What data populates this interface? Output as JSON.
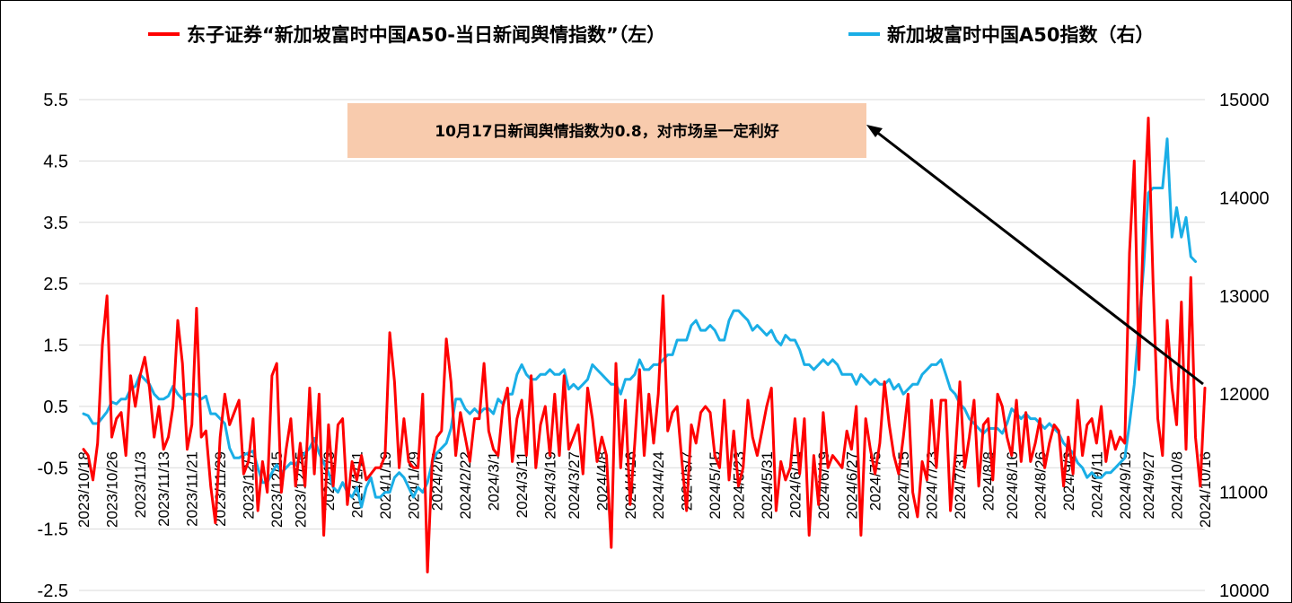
{
  "chart_data": {
    "type": "line",
    "legend_position": "top",
    "grid": true,
    "series": [
      {
        "name": "东子证券“新加坡富时中国A50-当日新闻舆情指数”（左）",
        "axis": "left",
        "color": "#ff0000",
        "values": [
          -0.2,
          -0.3,
          -0.7,
          -0.1,
          1.5,
          2.3,
          0.0,
          0.3,
          0.4,
          -0.3,
          1.0,
          0.5,
          1.0,
          1.3,
          0.8,
          0.0,
          0.5,
          -0.2,
          0.0,
          0.5,
          1.9,
          1.2,
          -0.2,
          0.2,
          2.1,
          0.0,
          0.1,
          -0.8,
          -1.4,
          0.0,
          0.7,
          0.2,
          0.4,
          0.6,
          -0.6,
          -0.4,
          0.3,
          -1.2,
          -0.4,
          -0.9,
          1.0,
          1.2,
          -0.9,
          -0.2,
          0.3,
          -0.8,
          -0.1,
          -0.8,
          0.8,
          -0.6,
          0.7,
          -1.6,
          0.2,
          -0.8,
          0.2,
          0.3,
          -1.1,
          -0.4,
          -0.7,
          -0.3,
          -0.7,
          -0.6,
          -0.5,
          -0.5,
          -0.3,
          1.7,
          0.9,
          -0.5,
          0.3,
          -0.4,
          -0.5,
          -0.5,
          0.7,
          -2.2,
          -0.4,
          0.0,
          0.1,
          1.6,
          0.9,
          -0.3,
          0.4,
          0.0,
          -0.4,
          0.3,
          0.3,
          1.2,
          0.1,
          -0.2,
          -0.3,
          0.5,
          0.8,
          -0.4,
          0.3,
          0.6,
          -0.3,
          1.0,
          -0.5,
          0.2,
          0.5,
          -0.3,
          0.7,
          -0.3,
          1.0,
          -0.2,
          0.0,
          0.2,
          -0.6,
          0.8,
          0.3,
          -0.4,
          0.0,
          -0.3,
          -1.8,
          1.2,
          -0.5,
          0.6,
          -1.1,
          -0.1,
          1.1,
          -0.3,
          0.7,
          -0.1,
          0.7,
          2.3,
          0.1,
          0.4,
          0.5,
          -0.4,
          -1.2,
          0.2,
          -0.1,
          0.4,
          0.5,
          0.4,
          -0.3,
          -0.5,
          0.6,
          -0.7,
          0.1,
          -0.8,
          -0.5,
          0.6,
          0.0,
          -0.3,
          0.1,
          0.5,
          0.8,
          -1.2,
          -0.4,
          -0.7,
          -0.5,
          0.3,
          -0.6,
          0.3,
          -1.6,
          -0.3,
          -1.1,
          0.4,
          -0.5,
          -0.3,
          -0.4,
          -0.5,
          0.1,
          -0.2,
          0.5,
          -1.6,
          0.3,
          -0.2,
          -0.6,
          -0.1,
          0.9,
          0.2,
          -0.3,
          -0.6,
          0.0,
          0.7,
          -0.9,
          -1.3,
          -0.4,
          -0.7,
          0.6,
          -0.5,
          0.6,
          0.6,
          -1.2,
          -0.3,
          0.9,
          -0.5,
          0.0,
          0.6,
          -0.8,
          0.2,
          0.3,
          -0.7,
          0.7,
          0.5,
          0.0,
          -0.3,
          0.6,
          -0.4,
          0.4,
          -0.4,
          -0.1,
          0.3,
          -0.5,
          -0.1,
          0.2,
          0.1,
          -0.8,
          0.0,
          -0.6,
          0.6,
          -0.3,
          0.2,
          0.3,
          -0.1,
          0.5,
          -0.4,
          0.1,
          -0.2,
          0.0,
          -0.1,
          3.0,
          4.5,
          1.1,
          3.5,
          5.2,
          2.5,
          0.3,
          -0.3,
          1.9,
          0.8,
          0.2,
          2.2,
          -0.2,
          2.6,
          0.0,
          -0.8,
          0.8
        ]
      },
      {
        "name": "新加坡富时中国A50指数（右）",
        "axis": "right",
        "color": "#1aaee6",
        "values": [
          11800,
          11780,
          11700,
          11700,
          11760,
          11820,
          11920,
          11900,
          11950,
          11950,
          12050,
          12080,
          12200,
          12150,
          12100,
          12000,
          11950,
          11950,
          11980,
          12080,
          12000,
          11950,
          12000,
          12000,
          12000,
          11950,
          11980,
          11800,
          11800,
          11750,
          11700,
          11450,
          11350,
          11350,
          11380,
          11400,
          11420,
          11250,
          11100,
          11100,
          11200,
          11280,
          11200,
          11250,
          11300,
          11280,
          11350,
          11400,
          11450,
          11550,
          11400,
          11300,
          11200,
          11050,
          11000,
          11100,
          11000,
          10950,
          11050,
          10850,
          11050,
          11150,
          10950,
          10950,
          11000,
          11000,
          11150,
          11200,
          11150,
          11050,
          10950,
          11050,
          11000,
          11100,
          11300,
          11400,
          11450,
          11500,
          11650,
          11950,
          11950,
          11850,
          11800,
          11850,
          11800,
          11850,
          11850,
          11800,
          11950,
          11900,
          12000,
          12000,
          12200,
          12300,
          12200,
          12150,
          12150,
          12200,
          12200,
          12250,
          12200,
          12200,
          12250,
          12050,
          12100,
          12050,
          12100,
          12150,
          12300,
          12250,
          12200,
          12150,
          12100,
          12100,
          12000,
          12150,
          12150,
          12200,
          12350,
          12250,
          12250,
          12300,
          12300,
          12350,
          12400,
          12400,
          12550,
          12550,
          12550,
          12700,
          12750,
          12650,
          12650,
          12700,
          12650,
          12550,
          12550,
          12750,
          12850,
          12850,
          12800,
          12750,
          12650,
          12700,
          12650,
          12600,
          12650,
          12550,
          12500,
          12600,
          12550,
          12550,
          12450,
          12300,
          12300,
          12250,
          12300,
          12350,
          12300,
          12350,
          12300,
          12200,
          12200,
          12200,
          12100,
          12200,
          12150,
          12100,
          12150,
          12100,
          12100,
          12150,
          12050,
          12100,
          12000,
          12050,
          12100,
          12100,
          12200,
          12250,
          12300,
          12300,
          12350,
          12200,
          12050,
          12000,
          11900,
          11850,
          11750,
          11700,
          11650,
          11600,
          11650,
          11650,
          11650,
          11600,
          11700,
          11850,
          11800,
          11750,
          11800,
          11750,
          11750,
          11700,
          11650,
          11700,
          11650,
          11600,
          11500,
          11450,
          11400,
          11300,
          11250,
          11150,
          11200,
          11150,
          11150,
          11200,
          11200,
          11250,
          11300,
          11350,
          11700,
          12100,
          12700,
          13300,
          14050,
          14100,
          14100,
          14100,
          14600,
          13600,
          13900,
          13600,
          13800,
          13400,
          13350
        ]
      }
    ],
    "x_tick_labels": [
      "2023/10/18",
      "2023/10/26",
      "2023/11/3",
      "2023/11/13",
      "2023/11/21",
      "2023/11/29",
      "2023/12/7",
      "2023/12/15",
      "2023/12/25",
      "2024/1/3",
      "2024/1/11",
      "2024/1/19",
      "2024/1/29",
      "2024/2/6",
      "2024/2/22",
      "2024/3/1",
      "2024/3/11",
      "2024/3/19",
      "2024/3/27",
      "2024/4/8",
      "2024/4/16",
      "2024/4/24",
      "2024/5/7",
      "2024/5/15",
      "2024/5/23",
      "2024/5/31",
      "2024/6/11",
      "2024/6/19",
      "2024/6/27",
      "2024/7/5",
      "2024/7/15",
      "2024/7/23",
      "2024/7/31",
      "2024/8/8",
      "2024/8/16",
      "2024/8/26",
      "2024/9/3",
      "2024/9/11",
      "2024/9/19",
      "2024/9/27",
      "2024/10/8",
      "2024/10/16"
    ],
    "y_left": {
      "range": [
        -2.5,
        5.5
      ],
      "ticks": [
        "-2.5",
        "-1.5",
        "-0.5",
        "0.5",
        "1.5",
        "2.5",
        "3.5",
        "4.5",
        "5.5"
      ]
    },
    "y_right": {
      "range": [
        10000,
        15000
      ],
      "ticks": [
        "10000",
        "11000",
        "12000",
        "13000",
        "14000",
        "15000"
      ]
    },
    "annotation": {
      "text": "10月17日新闻舆情指数为0.8，对市场呈一定利好",
      "background": "#f8cbad"
    }
  }
}
